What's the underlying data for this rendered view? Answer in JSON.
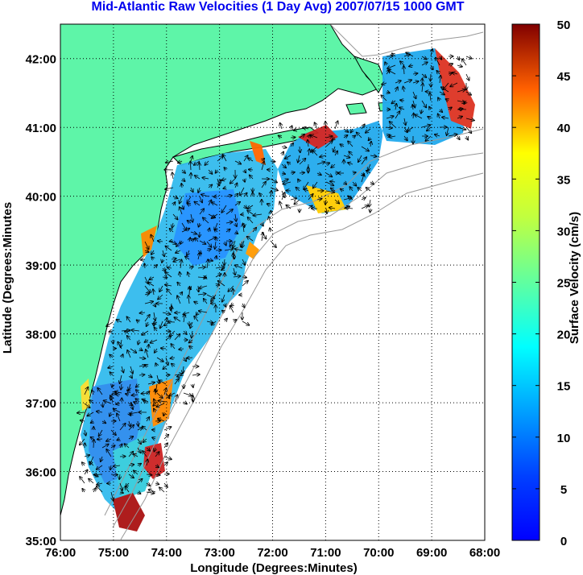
{
  "title": "Mid-Atlantic Raw Velocities (1 Day Avg) 2007/07/15 1000 GMT",
  "x_axis": {
    "label": "Longitude (Degrees:Minutes)",
    "ticks": [
      "76:00",
      "75:00",
      "74:00",
      "73:00",
      "72:00",
      "71:00",
      "70:00",
      "69:00",
      "68:00"
    ],
    "range": [
      -76,
      -68
    ]
  },
  "y_axis": {
    "label": "Latitude (Degrees:Minutes",
    "ticks": [
      "35:00",
      "36:00",
      "37:00",
      "38:00",
      "39:00",
      "40:00",
      "41:00",
      "42:00"
    ],
    "range": [
      35,
      42.5
    ]
  },
  "colorbar": {
    "label": "Surface Velocity (cm/s)",
    "ticks": [
      "0",
      "5",
      "10",
      "15",
      "20",
      "25",
      "30",
      "35",
      "40",
      "45",
      "50"
    ],
    "range": [
      0,
      50
    ],
    "colormap": "jet"
  },
  "colors": {
    "land": "#5ef5a8",
    "ocean": "#ffffff",
    "bathymetry": "#999999",
    "grid": "#000000",
    "title": "#0000ee"
  },
  "grid": true
}
